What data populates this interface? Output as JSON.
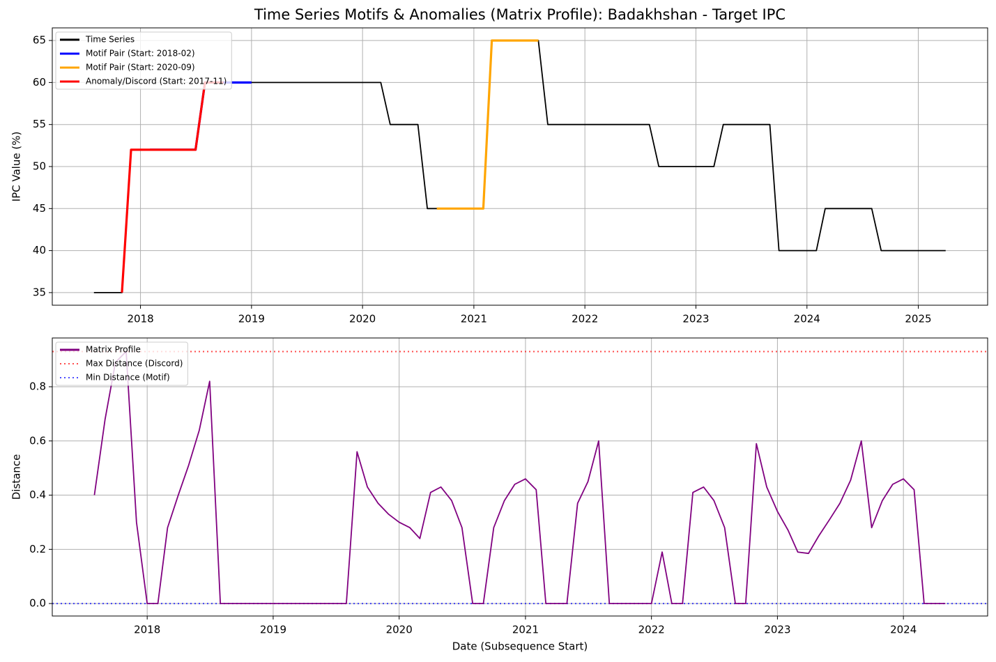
{
  "chart_data": [
    {
      "type": "line",
      "title": "Time Series Motifs & Anomalies (Matrix Profile): Badakhshan - Target IPC",
      "y_label": "IPC Value (%)",
      "grid": true,
      "legend": "upper left",
      "xlim": [
        "2017-03-17",
        "2025-08-17"
      ],
      "xticks": [
        {
          "value": "2018-01",
          "label": "2018"
        },
        {
          "value": "2019-01",
          "label": "2019"
        },
        {
          "value": "2020-01",
          "label": "2020"
        },
        {
          "value": "2021-01",
          "label": "2021"
        },
        {
          "value": "2022-01",
          "label": "2022"
        },
        {
          "value": "2023-01",
          "label": "2023"
        },
        {
          "value": "2024-01",
          "label": "2024"
        },
        {
          "value": "2025-01",
          "label": "2025"
        }
      ],
      "ylim": [
        33.5,
        66.5
      ],
      "yticks": [
        35,
        40,
        45,
        50,
        55,
        60,
        65
      ],
      "series": [
        {
          "name": "Time Series",
          "color": "#000000",
          "linewidth": 1.8,
          "x": [
            "2017-08",
            "2017-09",
            "2017-10",
            "2017-11",
            "2017-12",
            "2018-01",
            "2018-02",
            "2018-03",
            "2018-04",
            "2018-05",
            "2018-06",
            "2018-07",
            "2018-08",
            "2018-09",
            "2018-10",
            "2018-11",
            "2018-12",
            "2019-01",
            "2019-02",
            "2019-03",
            "2019-04",
            "2019-05",
            "2019-06",
            "2019-07",
            "2019-08",
            "2019-09",
            "2019-10",
            "2019-11",
            "2019-12",
            "2020-01",
            "2020-02",
            "2020-03",
            "2020-04",
            "2020-05",
            "2020-06",
            "2020-07",
            "2020-08",
            "2020-09",
            "2020-10",
            "2020-11",
            "2020-12",
            "2021-01",
            "2021-02",
            "2021-03",
            "2021-04",
            "2021-05",
            "2021-06",
            "2021-07",
            "2021-08",
            "2021-09",
            "2021-10",
            "2021-11",
            "2021-12",
            "2022-01",
            "2022-02",
            "2022-03",
            "2022-04",
            "2022-05",
            "2022-06",
            "2022-07",
            "2022-08",
            "2022-09",
            "2022-10",
            "2022-11",
            "2022-12",
            "2023-01",
            "2023-02",
            "2023-03",
            "2023-04",
            "2023-05",
            "2023-06",
            "2023-07",
            "2023-08",
            "2023-09",
            "2023-10",
            "2023-11",
            "2023-12",
            "2024-01",
            "2024-02",
            "2024-03",
            "2024-04",
            "2024-05",
            "2024-06",
            "2024-07",
            "2024-08",
            "2024-09",
            "2024-10",
            "2024-11",
            "2024-12",
            "2025-01",
            "2025-02",
            "2025-03",
            "2025-04"
          ],
          "values": [
            35,
            35,
            35,
            35,
            52,
            52,
            52,
            52,
            52,
            52,
            52,
            52,
            60,
            60,
            60,
            60,
            60,
            60,
            60,
            60,
            60,
            60,
            60,
            60,
            60,
            60,
            60,
            60,
            60,
            60,
            60,
            60,
            55,
            55,
            55,
            55,
            45,
            45,
            45,
            45,
            45,
            45,
            45,
            65,
            65,
            65,
            65,
            65,
            65,
            55,
            55,
            55,
            55,
            55,
            55,
            55,
            55,
            55,
            55,
            55,
            55,
            50,
            50,
            50,
            50,
            50,
            50,
            50,
            55,
            55,
            55,
            55,
            55,
            55,
            40,
            40,
            40,
            40,
            40,
            45,
            45,
            45,
            45,
            45,
            45,
            40,
            40,
            40,
            40,
            40,
            40,
            40,
            40
          ]
        },
        {
          "name": "Motif Pair (Start: 2018-02)",
          "color": "#0000ff",
          "linewidth": 3.2,
          "x": [
            "2018-02",
            "2018-03",
            "2018-04",
            "2018-05",
            "2018-06",
            "2018-07",
            "2018-08",
            "2018-09",
            "2018-10",
            "2018-11",
            "2018-12",
            "2019-01"
          ],
          "values": [
            52,
            52,
            52,
            52,
            52,
            52,
            60,
            60,
            60,
            60,
            60,
            60
          ]
        },
        {
          "name": "Motif Pair (Start: 2020-09)",
          "color": "#ffa500",
          "linewidth": 3.2,
          "x": [
            "2020-09",
            "2020-10",
            "2020-11",
            "2020-12",
            "2021-01",
            "2021-02",
            "2021-03",
            "2021-04",
            "2021-05",
            "2021-06",
            "2021-07",
            "2021-08"
          ],
          "values": [
            45,
            45,
            45,
            45,
            45,
            45,
            65,
            65,
            65,
            65,
            65,
            65
          ]
        },
        {
          "name": "Anomaly/Discord (Start: 2017-11)",
          "color": "#ff0000",
          "linewidth": 3.2,
          "x": [
            "2017-11",
            "2017-12",
            "2018-01",
            "2018-02",
            "2018-03",
            "2018-04",
            "2018-05",
            "2018-06",
            "2018-07",
            "2018-08",
            "2018-09",
            "2018-10"
          ],
          "values": [
            35,
            52,
            52,
            52,
            52,
            52,
            52,
            52,
            52,
            60,
            60,
            60
          ]
        }
      ]
    },
    {
      "type": "line",
      "x_label": "Date (Subsequence Start)",
      "y_label": "Distance",
      "grid": true,
      "legend": "upper left",
      "xlim": [
        "2017-04-01",
        "2024-09-01"
      ],
      "xticks": [
        {
          "value": "2018-01",
          "label": "2018"
        },
        {
          "value": "2019-01",
          "label": "2019"
        },
        {
          "value": "2020-01",
          "label": "2020"
        },
        {
          "value": "2021-01",
          "label": "2021"
        },
        {
          "value": "2022-01",
          "label": "2022"
        },
        {
          "value": "2023-01",
          "label": "2023"
        },
        {
          "value": "2024-01",
          "label": "2024"
        }
      ],
      "ylim": [
        -0.046,
        0.98
      ],
      "yticks": [
        {
          "value": 0,
          "label": "0.0"
        },
        0.2,
        0.4,
        0.6,
        0.8
      ],
      "series": [
        {
          "name": "Matrix Profile",
          "color": "#800080",
          "linewidth": 1.8,
          "x": [
            "2017-08",
            "2017-09",
            "2017-10",
            "2017-11",
            "2017-12",
            "2018-01",
            "2018-02",
            "2018-03",
            "2018-04",
            "2018-05",
            "2018-06",
            "2018-07",
            "2018-08",
            "2018-09",
            "2018-10",
            "2018-11",
            "2018-12",
            "2019-01",
            "2019-02",
            "2019-03",
            "2019-04",
            "2019-05",
            "2019-06",
            "2019-07",
            "2019-08",
            "2019-09",
            "2019-10",
            "2019-11",
            "2019-12",
            "2020-01",
            "2020-02",
            "2020-03",
            "2020-04",
            "2020-05",
            "2020-06",
            "2020-07",
            "2020-08",
            "2020-09",
            "2020-10",
            "2020-11",
            "2020-12",
            "2021-01",
            "2021-02",
            "2021-03",
            "2021-04",
            "2021-05",
            "2021-06",
            "2021-07",
            "2021-08",
            "2021-09",
            "2021-10",
            "2021-11",
            "2021-12",
            "2022-01",
            "2022-02",
            "2022-03",
            "2022-04",
            "2022-05",
            "2022-06",
            "2022-07",
            "2022-08",
            "2022-09",
            "2022-10",
            "2022-11",
            "2022-12",
            "2023-01",
            "2023-02",
            "2023-03",
            "2023-04",
            "2023-05",
            "2023-06",
            "2023-07",
            "2023-08",
            "2023-09",
            "2023-10",
            "2023-11",
            "2023-12",
            "2024-01",
            "2024-02",
            "2024-03",
            "2024-04",
            "2024-05"
          ],
          "values": [
            0.4,
            0.68,
            0.89,
            0.93,
            0.3,
            0,
            0,
            0.28,
            0.4,
            0.51,
            0.64,
            0.82,
            0,
            0,
            0,
            0,
            0,
            0,
            0,
            0,
            0,
            0,
            0,
            0,
            0,
            0.56,
            0.43,
            0.37,
            0.33,
            0.3,
            0.28,
            0.24,
            0.41,
            0.43,
            0.38,
            0.28,
            0,
            0,
            0.28,
            0.38,
            0.44,
            0.46,
            0.42,
            0,
            0,
            0,
            0.37,
            0.45,
            0.6,
            0,
            0,
            0,
            0,
            0,
            0.19,
            0,
            0,
            0.41,
            0.43,
            0.38,
            0.28,
            0,
            0,
            0.59,
            0.43,
            0.34,
            0.27,
            0.19,
            0.185,
            0.25,
            0.31,
            0.37,
            0.455,
            0.6,
            0.28,
            0.38,
            0.44,
            0.46,
            0.42,
            0,
            0,
            0
          ]
        }
      ],
      "hlines": [
        {
          "name": "Max Distance (Discord)",
          "color": "#ff0000",
          "value": 0.93
        },
        {
          "name": "Min Distance (Motif)",
          "color": "#0000ff",
          "value": 0
        }
      ]
    }
  ]
}
